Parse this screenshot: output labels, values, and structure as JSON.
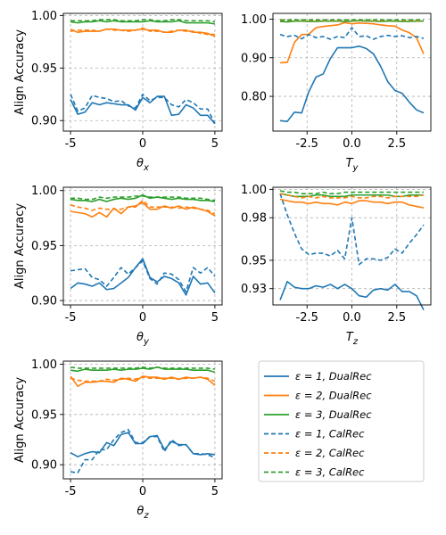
{
  "ylabel": "Align Accuracy",
  "legend": {
    "placement": "bottom-right empty cell",
    "entries": [
      {
        "label": "ε = 1, DualRec",
        "color": "#1f77b4",
        "dash": "solid"
      },
      {
        "label": "ε = 2, DualRec",
        "color": "#ff7f0e",
        "dash": "solid"
      },
      {
        "label": "ε = 3, DualRec",
        "color": "#2ca02c",
        "dash": "solid"
      },
      {
        "label": "ε = 1, CalRec",
        "color": "#1f77b4",
        "dash": "dashed"
      },
      {
        "label": "ε = 2, CalRec",
        "color": "#ff7f0e",
        "dash": "dashed"
      },
      {
        "label": "ε = 3, CalRec",
        "color": "#2ca02c",
        "dash": "dashed"
      }
    ]
  },
  "chart_data": [
    {
      "type": "line",
      "xlabel": "θx",
      "ylabel": "Align Accuracy",
      "xlim": [
        -5.5,
        5.5
      ],
      "ylim": [
        0.89,
        1.002
      ],
      "xticks": [
        "-5",
        "0",
        "5"
      ],
      "yticks": [
        "0.90",
        "0.95",
        "1.00"
      ],
      "grid": true,
      "x": [
        -5,
        -4.5,
        -4,
        -3.5,
        -3,
        -2.5,
        -2,
        -1.5,
        -1,
        -0.5,
        0,
        0.5,
        1,
        1.5,
        2,
        2.5,
        3,
        3.5,
        4,
        4.5,
        5
      ],
      "series": [
        {
          "name": "ε = 1, DualRec",
          "values": [
            0.92,
            0.906,
            0.908,
            0.917,
            0.915,
            0.917,
            0.916,
            0.915,
            0.915,
            0.91,
            0.922,
            0.917,
            0.923,
            0.923,
            0.905,
            0.906,
            0.915,
            0.912,
            0.905,
            0.905,
            0.897
          ]
        },
        {
          "name": "ε = 2, DualRec",
          "values": [
            0.987,
            0.984,
            0.985,
            0.985,
            0.985,
            0.987,
            0.987,
            0.986,
            0.986,
            0.986,
            0.987,
            0.986,
            0.986,
            0.984,
            0.984,
            0.986,
            0.986,
            0.984,
            0.984,
            0.983,
            0.98
          ]
        },
        {
          "name": "ε = 3, DualRec",
          "values": [
            0.994,
            0.993,
            0.994,
            0.994,
            0.995,
            0.994,
            0.995,
            0.994,
            0.994,
            0.994,
            0.994,
            0.995,
            0.994,
            0.994,
            0.994,
            0.995,
            0.993,
            0.993,
            0.993,
            0.993,
            0.992
          ]
        },
        {
          "name": "ε = 1, CalRec",
          "values": [
            0.925,
            0.909,
            0.912,
            0.924,
            0.922,
            0.921,
            0.918,
            0.919,
            0.914,
            0.912,
            0.925,
            0.919,
            0.922,
            0.922,
            0.915,
            0.913,
            0.92,
            0.917,
            0.911,
            0.911,
            0.897
          ]
        },
        {
          "name": "ε = 2, CalRec",
          "values": [
            0.985,
            0.986,
            0.986,
            0.986,
            0.985,
            0.987,
            0.986,
            0.986,
            0.985,
            0.986,
            0.988,
            0.985,
            0.985,
            0.984,
            0.985,
            0.986,
            0.985,
            0.985,
            0.983,
            0.982,
            0.982
          ]
        },
        {
          "name": "ε = 3, CalRec",
          "values": [
            0.995,
            0.995,
            0.995,
            0.995,
            0.996,
            0.996,
            0.996,
            0.995,
            0.995,
            0.995,
            0.996,
            0.996,
            0.995,
            0.995,
            0.996,
            0.996,
            0.995,
            0.995,
            0.995,
            0.995,
            0.994
          ]
        }
      ]
    },
    {
      "type": "line",
      "xlabel": "Ty",
      "ylabel": "",
      "xlim": [
        -4.4,
        4.4
      ],
      "ylim": [
        0.71,
        1.015
      ],
      "xticks": [
        "-2.5",
        "0.0",
        "2.5"
      ],
      "yticks": [
        "0.80",
        "0.90",
        "1.00"
      ],
      "grid": true,
      "x": [
        -4,
        -3.6,
        -3.2,
        -2.8,
        -2.4,
        -2,
        -1.6,
        -1.2,
        -0.8,
        -0.4,
        0,
        0.4,
        0.8,
        1.2,
        1.6,
        2,
        2.4,
        2.8,
        3.2,
        3.6,
        4
      ],
      "series": [
        {
          "name": "ε = 1, DualRec",
          "values": [
            0.737,
            0.735,
            0.759,
            0.757,
            0.812,
            0.85,
            0.858,
            0.898,
            0.926,
            0.926,
            0.926,
            0.93,
            0.924,
            0.91,
            0.878,
            0.838,
            0.815,
            0.808,
            0.785,
            0.765,
            0.757
          ]
        },
        {
          "name": "ε = 2, DualRec",
          "values": [
            0.887,
            0.888,
            0.94,
            0.96,
            0.961,
            0.978,
            0.981,
            0.983,
            0.985,
            0.991,
            0.988,
            0.99,
            0.989,
            0.988,
            0.985,
            0.983,
            0.982,
            0.972,
            0.965,
            0.952,
            0.91
          ]
        },
        {
          "name": "ε = 3, DualRec",
          "values": [
            0.994,
            0.993,
            0.995,
            0.995,
            0.994,
            0.994,
            0.995,
            0.995,
            0.995,
            0.994,
            0.995,
            0.996,
            0.995,
            0.995,
            0.994,
            0.995,
            0.995,
            0.994,
            0.994,
            0.995,
            0.995
          ]
        },
        {
          "name": "ε = 1, CalRec",
          "values": [
            0.96,
            0.955,
            0.958,
            0.949,
            0.96,
            0.952,
            0.955,
            0.948,
            0.955,
            0.952,
            0.978,
            0.955,
            0.957,
            0.948,
            0.955,
            0.958,
            0.955,
            0.957,
            0.952,
            0.955,
            0.95
          ]
        },
        {
          "name": "ε = 2, CalRec",
          "values": [
            0.997,
            0.997,
            0.997,
            0.997,
            0.996,
            0.997,
            0.996,
            0.997,
            0.996,
            0.997,
            0.997,
            0.997,
            0.997,
            0.996,
            0.996,
            0.997,
            0.997,
            0.996,
            0.996,
            0.996,
            0.996
          ]
        },
        {
          "name": "ε = 3, CalRec",
          "values": [
            0.998,
            0.998,
            0.998,
            0.998,
            0.998,
            0.998,
            0.998,
            0.998,
            0.998,
            0.998,
            0.998,
            0.998,
            0.998,
            0.998,
            0.998,
            0.998,
            0.998,
            0.998,
            0.998,
            0.998,
            0.998
          ]
        }
      ]
    },
    {
      "type": "line",
      "xlabel": "θy",
      "ylabel": "Align Accuracy",
      "xlim": [
        -5.5,
        5.5
      ],
      "ylim": [
        0.896,
        1.003
      ],
      "xticks": [
        "-5",
        "0",
        "5"
      ],
      "yticks": [
        "0.90",
        "0.95",
        "1.00"
      ],
      "grid": true,
      "x": [
        -5,
        -4.5,
        -4,
        -3.5,
        -3,
        -2.5,
        -2,
        -1.5,
        -1,
        -0.5,
        0,
        0.5,
        1,
        1.5,
        2,
        2.5,
        3,
        3.5,
        4,
        4.5,
        5
      ],
      "series": [
        {
          "name": "ε = 1, DualRec",
          "values": [
            0.911,
            0.916,
            0.915,
            0.913,
            0.916,
            0.91,
            0.911,
            0.916,
            0.921,
            0.93,
            0.938,
            0.921,
            0.917,
            0.922,
            0.92,
            0.916,
            0.905,
            0.922,
            0.915,
            0.916,
            0.907
          ]
        },
        {
          "name": "ε = 2, DualRec",
          "values": [
            0.981,
            0.98,
            0.979,
            0.976,
            0.98,
            0.976,
            0.984,
            0.979,
            0.985,
            0.986,
            0.989,
            0.983,
            0.983,
            0.986,
            0.984,
            0.986,
            0.983,
            0.985,
            0.983,
            0.981,
            0.977
          ]
        },
        {
          "name": "ε = 3, DualRec",
          "values": [
            0.992,
            0.991,
            0.991,
            0.99,
            0.992,
            0.99,
            0.992,
            0.993,
            0.992,
            0.993,
            0.996,
            0.993,
            0.994,
            0.993,
            0.992,
            0.993,
            0.992,
            0.992,
            0.991,
            0.991,
            0.99
          ]
        },
        {
          "name": "ε = 1, CalRec",
          "values": [
            0.927,
            0.928,
            0.929,
            0.921,
            0.919,
            0.913,
            0.921,
            0.93,
            0.924,
            0.93,
            0.936,
            0.92,
            0.915,
            0.925,
            0.924,
            0.919,
            0.908,
            0.93,
            0.925,
            0.93,
            0.922
          ]
        },
        {
          "name": "ε = 2, CalRec",
          "values": [
            0.987,
            0.985,
            0.984,
            0.982,
            0.984,
            0.983,
            0.983,
            0.983,
            0.985,
            0.985,
            0.991,
            0.985,
            0.985,
            0.985,
            0.985,
            0.984,
            0.985,
            0.984,
            0.983,
            0.982,
            0.979
          ]
        },
        {
          "name": "ε = 3, CalRec",
          "values": [
            0.993,
            0.993,
            0.992,
            0.992,
            0.994,
            0.993,
            0.994,
            0.994,
            0.994,
            0.995,
            0.995,
            0.994,
            0.994,
            0.994,
            0.994,
            0.994,
            0.993,
            0.993,
            0.993,
            0.992,
            0.991
          ]
        }
      ]
    },
    {
      "type": "line",
      "xlabel": "Tz",
      "ylabel": "",
      "xlim": [
        -4.4,
        4.4
      ],
      "ylim": [
        0.9185,
        1.0015
      ],
      "xticks": [
        "-2.5",
        "0.0",
        "2.5"
      ],
      "yticks": [
        "0.93",
        "0.95",
        "0.98",
        "1.00"
      ],
      "grid": true,
      "x": [
        -4,
        -3.6,
        -3.2,
        -2.8,
        -2.4,
        -2,
        -1.6,
        -1.2,
        -0.8,
        -0.4,
        0,
        0.4,
        0.8,
        1.2,
        1.6,
        2,
        2.4,
        2.8,
        3.2,
        3.6,
        4
      ],
      "series": [
        {
          "name": "ε = 1, DualRec",
          "values": [
            0.922,
            0.935,
            0.931,
            0.93,
            0.93,
            0.932,
            0.931,
            0.933,
            0.93,
            0.933,
            0.93,
            0.925,
            0.924,
            0.929,
            0.93,
            0.929,
            0.933,
            0.928,
            0.928,
            0.925,
            0.915
          ]
        },
        {
          "name": "ε = 2, DualRec",
          "values": [
            0.993,
            0.992,
            0.991,
            0.991,
            0.99,
            0.991,
            0.99,
            0.99,
            0.989,
            0.991,
            0.99,
            0.992,
            0.992,
            0.991,
            0.991,
            0.99,
            0.991,
            0.991,
            0.989,
            0.988,
            0.987
          ]
        },
        {
          "name": "ε = 3, DualRec",
          "values": [
            0.997,
            0.996,
            0.995,
            0.995,
            0.995,
            0.996,
            0.996,
            0.995,
            0.995,
            0.995,
            0.996,
            0.996,
            0.996,
            0.996,
            0.996,
            0.996,
            0.995,
            0.995,
            0.996,
            0.996,
            0.996
          ]
        },
        {
          "name": "ε = 1, CalRec",
          "values": [
            0.997,
            0.982,
            0.969,
            0.958,
            0.954,
            0.955,
            0.955,
            0.953,
            0.957,
            0.951,
            0.98,
            0.947,
            0.951,
            0.951,
            0.95,
            0.952,
            0.958,
            0.955,
            0.962,
            0.968,
            0.975
          ]
        },
        {
          "name": "ε = 2, CalRec",
          "values": [
            0.997,
            0.996,
            0.995,
            0.994,
            0.995,
            0.994,
            0.995,
            0.994,
            0.994,
            0.994,
            0.995,
            0.994,
            0.994,
            0.995,
            0.995,
            0.994,
            0.995,
            0.995,
            0.995,
            0.995,
            0.996
          ]
        },
        {
          "name": "ε = 3, CalRec",
          "values": [
            0.999,
            0.998,
            0.998,
            0.997,
            0.997,
            0.997,
            0.998,
            0.997,
            0.997,
            0.998,
            0.998,
            0.998,
            0.998,
            0.998,
            0.998,
            0.998,
            0.998,
            0.998,
            0.998,
            0.998,
            0.998
          ]
        }
      ]
    },
    {
      "type": "line",
      "xlabel": "θz",
      "ylabel": "Align Accuracy",
      "xlim": [
        -5.5,
        5.5
      ],
      "ylim": [
        0.886,
        1.003
      ],
      "xticks": [
        "-5",
        "0",
        "5"
      ],
      "yticks": [
        "0.90",
        "0.95",
        "1.00"
      ],
      "grid": true,
      "x": [
        -5,
        -4.5,
        -4,
        -3.5,
        -3,
        -2.5,
        -2,
        -1.5,
        -1,
        -0.5,
        0,
        0.5,
        1,
        1.5,
        2,
        2.5,
        3,
        3.5,
        4,
        4.5,
        5
      ],
      "series": [
        {
          "name": "ε = 1, DualRec",
          "values": [
            0.912,
            0.908,
            0.911,
            0.913,
            0.912,
            0.922,
            0.919,
            0.93,
            0.932,
            0.921,
            0.921,
            0.928,
            0.929,
            0.915,
            0.923,
            0.92,
            0.92,
            0.911,
            0.91,
            0.911,
            0.91
          ]
        },
        {
          "name": "ε = 2, DualRec",
          "values": [
            0.988,
            0.978,
            0.982,
            0.982,
            0.983,
            0.983,
            0.982,
            0.986,
            0.985,
            0.983,
            0.988,
            0.987,
            0.987,
            0.985,
            0.987,
            0.985,
            0.987,
            0.986,
            0.987,
            0.985,
            0.979
          ]
        },
        {
          "name": "ε = 3, DualRec",
          "values": [
            0.994,
            0.993,
            0.995,
            0.994,
            0.994,
            0.994,
            0.995,
            0.994,
            0.995,
            0.995,
            0.996,
            0.995,
            0.997,
            0.995,
            0.995,
            0.995,
            0.995,
            0.994,
            0.994,
            0.994,
            0.992
          ]
        },
        {
          "name": "ε = 1, CalRec",
          "values": [
            0.893,
            0.892,
            0.905,
            0.905,
            0.915,
            0.915,
            0.925,
            0.932,
            0.935,
            0.922,
            0.922,
            0.928,
            0.928,
            0.913,
            0.925,
            0.919,
            0.92,
            0.911,
            0.911,
            0.91,
            0.907
          ]
        },
        {
          "name": "ε = 2, CalRec",
          "values": [
            0.986,
            0.984,
            0.983,
            0.983,
            0.983,
            0.985,
            0.984,
            0.985,
            0.986,
            0.985,
            0.987,
            0.986,
            0.986,
            0.986,
            0.986,
            0.985,
            0.986,
            0.986,
            0.987,
            0.986,
            0.983
          ]
        },
        {
          "name": "ε = 3, CalRec",
          "values": [
            0.997,
            0.996,
            0.996,
            0.996,
            0.996,
            0.996,
            0.996,
            0.996,
            0.996,
            0.996,
            0.997,
            0.996,
            0.997,
            0.996,
            0.996,
            0.996,
            0.996,
            0.996,
            0.996,
            0.996,
            0.995
          ]
        }
      ]
    }
  ]
}
